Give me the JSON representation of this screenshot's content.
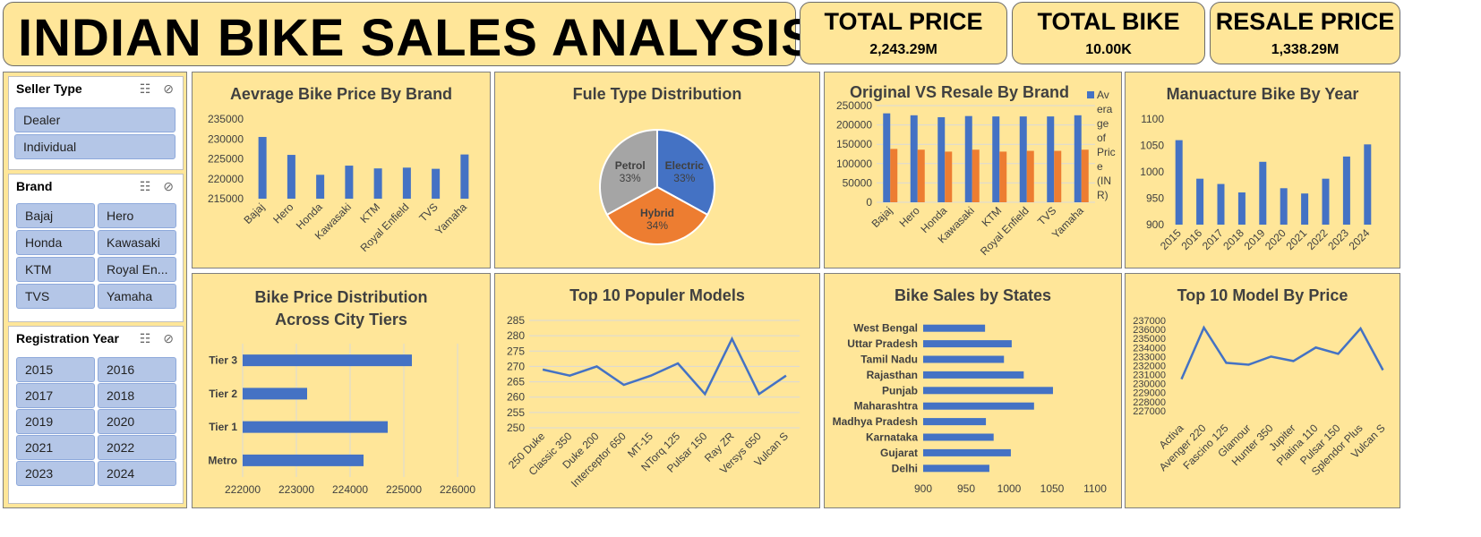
{
  "header": {
    "title": "INDIAN BIKE SALES ANALYSIS"
  },
  "kpis": [
    {
      "label": "TOTAL PRICE",
      "value": "2,243.29M"
    },
    {
      "label": "TOTAL BIKE",
      "value": "10.00K"
    },
    {
      "label": "RESALE PRICE",
      "value": "1,338.29M"
    }
  ],
  "slicers": {
    "seller": {
      "title": "Seller Type",
      "items": [
        "Dealer",
        "Individual"
      ]
    },
    "brand": {
      "title": "Brand",
      "items": [
        "Bajaj",
        "Hero",
        "Honda",
        "Kawasaki",
        "KTM",
        "Royal En...",
        "TVS",
        "Yamaha"
      ]
    },
    "year": {
      "title": "Registration Year",
      "items": [
        "2015",
        "2016",
        "2017",
        "2018",
        "2019",
        "2020",
        "2021",
        "2022",
        "2023",
        "2024"
      ]
    }
  },
  "colors": {
    "blue": "#4472c4",
    "orange": "#ed7d31",
    "gray": "#a5a5a5",
    "panel": "#ffe699"
  },
  "chart_data": [
    {
      "id": "avg-price-brand",
      "type": "bar",
      "title": "Aevrage Bike Price By Brand",
      "categories": [
        "Bajaj",
        "Hero",
        "Honda",
        "Kawasaki",
        "KTM",
        "Royal Enfield",
        "TVS",
        "Yamaha"
      ],
      "values": [
        230500,
        226000,
        221000,
        223300,
        222600,
        222800,
        222500,
        226100
      ],
      "ylim": [
        215000,
        235000
      ],
      "yticks": [
        215000,
        220000,
        225000,
        230000,
        235000
      ],
      "grid": false
    },
    {
      "id": "fuel-type",
      "type": "pie",
      "title": "Fule Type Distribution",
      "labels": [
        "Electric",
        "Hybrid",
        "Petrol"
      ],
      "values": [
        33,
        34,
        33
      ],
      "value_labels": [
        "33%",
        "34%",
        "33%"
      ]
    },
    {
      "id": "orig-vs-resale",
      "type": "bar",
      "title": "Original VS Resale By Brand",
      "categories": [
        "Bajaj",
        "Hero",
        "Honda",
        "Kawasaki",
        "KTM",
        "Royal Enfield",
        "TVS",
        "Yamaha"
      ],
      "series": [
        {
          "name": "Average of Price (INR)",
          "values": [
            230000,
            225000,
            220000,
            223000,
            222000,
            222000,
            222000,
            225000
          ]
        },
        {
          "values": [
            138000,
            136000,
            131000,
            136000,
            131000,
            133000,
            133000,
            136000
          ]
        }
      ],
      "legend_entry": "Average of Price (INR)",
      "ylim": [
        0,
        250000
      ],
      "yticks": [
        0,
        50000,
        100000,
        150000,
        200000,
        250000
      ],
      "legend": "right"
    },
    {
      "id": "manufacture-year",
      "type": "bar",
      "title": "Manuacture Bike By Year",
      "categories": [
        "2015",
        "2016",
        "2017",
        "2018",
        "2019",
        "2020",
        "2021",
        "2022",
        "2023",
        "2024"
      ],
      "values": [
        1060,
        987,
        977,
        961,
        1019,
        969,
        959,
        987,
        1029,
        1052
      ],
      "ylim": [
        900,
        1100
      ],
      "yticks": [
        900,
        950,
        1000,
        1050,
        1100
      ]
    },
    {
      "id": "city-tiers",
      "type": "bar",
      "orientation": "horizontal",
      "title": "Bike Price Distribution Across City Tiers",
      "categories": [
        "Tier 3",
        "Tier 2",
        "Tier 1",
        "Metro"
      ],
      "values": [
        225150,
        223200,
        224700,
        224250
      ],
      "xlim": [
        222000,
        226000
      ],
      "xticks": [
        222000,
        223000,
        224000,
        225000,
        226000
      ],
      "grid": true
    },
    {
      "id": "popular-models",
      "type": "line",
      "title": "Top 10 Populer Models",
      "categories": [
        "250 Duke",
        "Classic 350",
        "Duke 200",
        "Interceptor 650",
        "MT-15",
        "NTorq 125",
        "Pulsar 150",
        "Ray ZR",
        "Versys 650",
        "Vulcan S"
      ],
      "values": [
        269,
        267,
        270,
        264,
        267,
        271,
        261,
        279,
        261,
        267
      ],
      "ylim": [
        250,
        285
      ],
      "yticks": [
        250,
        255,
        260,
        265,
        270,
        275,
        280,
        285
      ],
      "grid": true
    },
    {
      "id": "sales-states",
      "type": "bar",
      "orientation": "horizontal",
      "title": "Bike Sales by States",
      "categories": [
        "West Bengal",
        "Uttar Pradesh",
        "Tamil Nadu",
        "Rajasthan",
        "Punjab",
        "Maharashtra",
        "Madhya Pradesh",
        "Karnataka",
        "Gujarat",
        "Delhi"
      ],
      "values": [
        972,
        1003,
        994,
        1017,
        1051,
        1029,
        973,
        982,
        1002,
        977
      ],
      "xlim": [
        900,
        1100
      ],
      "xticks": [
        900,
        950,
        1000,
        1050,
        1100
      ]
    },
    {
      "id": "model-price",
      "type": "line",
      "title": "Top 10 Model By Price",
      "categories": [
        "Activa",
        "Avenger 220",
        "Fascino 125",
        "Glamour",
        "Hunter 350",
        "Jupiter",
        "Platina 110",
        "Pulsar 150",
        "Splendor Plus",
        "Vulcan S"
      ],
      "values": [
        230500,
        236200,
        232300,
        232100,
        233000,
        232500,
        234000,
        233300,
        236100,
        231500
      ],
      "ylim": [
        226000,
        237000
      ],
      "yticks": [
        227000,
        228000,
        229000,
        230000,
        231000,
        232000,
        233000,
        234000,
        235000,
        236000,
        237000
      ]
    }
  ]
}
